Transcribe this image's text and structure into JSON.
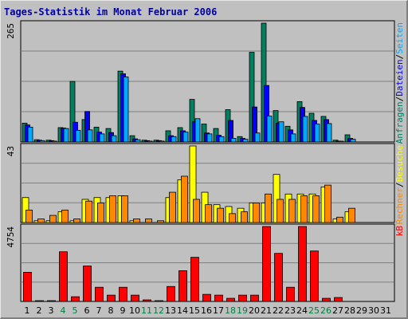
{
  "chart_data": {
    "type": "bar",
    "title": "Tages-Statistik im Monat Februar 2006",
    "days": [
      "1",
      "2",
      "3",
      "4",
      "5",
      "6",
      "7",
      "8",
      "9",
      "10",
      "11",
      "12",
      "13",
      "14",
      "15",
      "16",
      "17",
      "18",
      "19",
      "20",
      "21",
      "22",
      "23",
      "24",
      "25",
      "26",
      "27",
      "28",
      "29",
      "30",
      "31"
    ],
    "weekend_days": [
      "4",
      "5",
      "11",
      "12",
      "18",
      "19",
      "25",
      "26"
    ],
    "colors": {
      "anfragen": "#008060",
      "dateien": "#0000ff",
      "seiten": "#00aaff",
      "besuche": "#ffff00",
      "rechner": "#ff8800",
      "kb": "#ff0000",
      "weekday_label": "#000000",
      "weekend_label": "#008040",
      "panel_bg": "#c0c0c0",
      "gridline": "#808080"
    },
    "panels": [
      {
        "max_label": "265",
        "ymax": 265,
        "series": [
          {
            "name": "Anfragen",
            "color": "#008060",
            "values": [
              42,
              5,
              4,
              32,
              135,
              50,
              33,
              30,
              158,
              14,
              4,
              4,
              25,
              32,
              95,
              40,
              30,
              72,
              12,
              200,
              265,
              70,
              35,
              90,
              64,
              57,
              4,
              16,
              0,
              0,
              0
            ]
          },
          {
            "name": "Dateien",
            "color": "#0000ff",
            "values": [
              38,
              4,
              3,
              31,
              44,
              68,
              22,
              21,
              152,
              7,
              3,
              3,
              14,
              25,
              45,
              20,
              15,
              48,
              8,
              78,
              126,
              42,
              27,
              77,
              48,
              50,
              2,
              8,
              0,
              0,
              0
            ]
          },
          {
            "name": "Seiten",
            "color": "#00aaff",
            "values": [
              33,
              3,
              2,
              30,
              26,
              27,
              18,
              14,
              145,
              5,
              2,
              2,
              12,
              22,
              52,
              18,
              12,
              8,
              6,
              20,
              58,
              45,
              18,
              57,
              40,
              41,
              1,
              6,
              0,
              0,
              0
            ]
          }
        ],
        "axis_label": [
          {
            "text": "Anfragen",
            "color": "#008060"
          },
          {
            "text": "/",
            "color": "#000000"
          },
          {
            "text": "Dateien",
            "color": "#0000ff"
          },
          {
            "text": "/",
            "color": "#000000"
          },
          {
            "text": "Seiten",
            "color": "#00aaff"
          }
        ]
      },
      {
        "max_label": "43",
        "ymax": 43,
        "series": [
          {
            "name": "Besuche",
            "color": "#ffff00",
            "values": [
              14,
              1,
              1,
              6,
              1,
              13,
              14,
              14,
              15,
              1,
              0,
              0,
              14,
              24,
              43,
              17,
              10,
              9,
              8,
              11,
              11,
              27,
              16,
              16,
              16,
              20,
              2,
              6,
              0,
              0,
              0
            ]
          },
          {
            "name": "Rechner",
            "color": "#ff8800",
            "values": [
              7,
              2,
              4,
              7,
              2,
              12,
              11,
              15,
              15,
              2,
              2,
              1,
              17,
              26,
              13,
              10,
              8,
              5,
              6,
              11,
              16,
              13,
              13,
              15,
              15,
              21,
              3,
              8,
              0,
              0,
              0
            ]
          }
        ],
        "axis_label": [
          {
            "text": "Rechner",
            "color": "#ff8800"
          },
          {
            "text": "/",
            "color": "#000000"
          },
          {
            "text": "Besuche",
            "color": "#ffff00"
          }
        ]
      },
      {
        "max_label": "4754",
        "ymax": 4754,
        "series": [
          {
            "name": "kB",
            "color": "#ff0000",
            "values": [
              1850,
              50,
              30,
              3150,
              300,
              2250,
              900,
              400,
              900,
              400,
              100,
              50,
              950,
              1950,
              2800,
              450,
              400,
              200,
              400,
              400,
              4754,
              3050,
              900,
              4754,
              3200,
              200,
              250,
              0,
              0,
              0,
              0
            ]
          }
        ],
        "axis_label": [
          {
            "text": "kB",
            "color": "#ff0000"
          }
        ]
      }
    ]
  }
}
